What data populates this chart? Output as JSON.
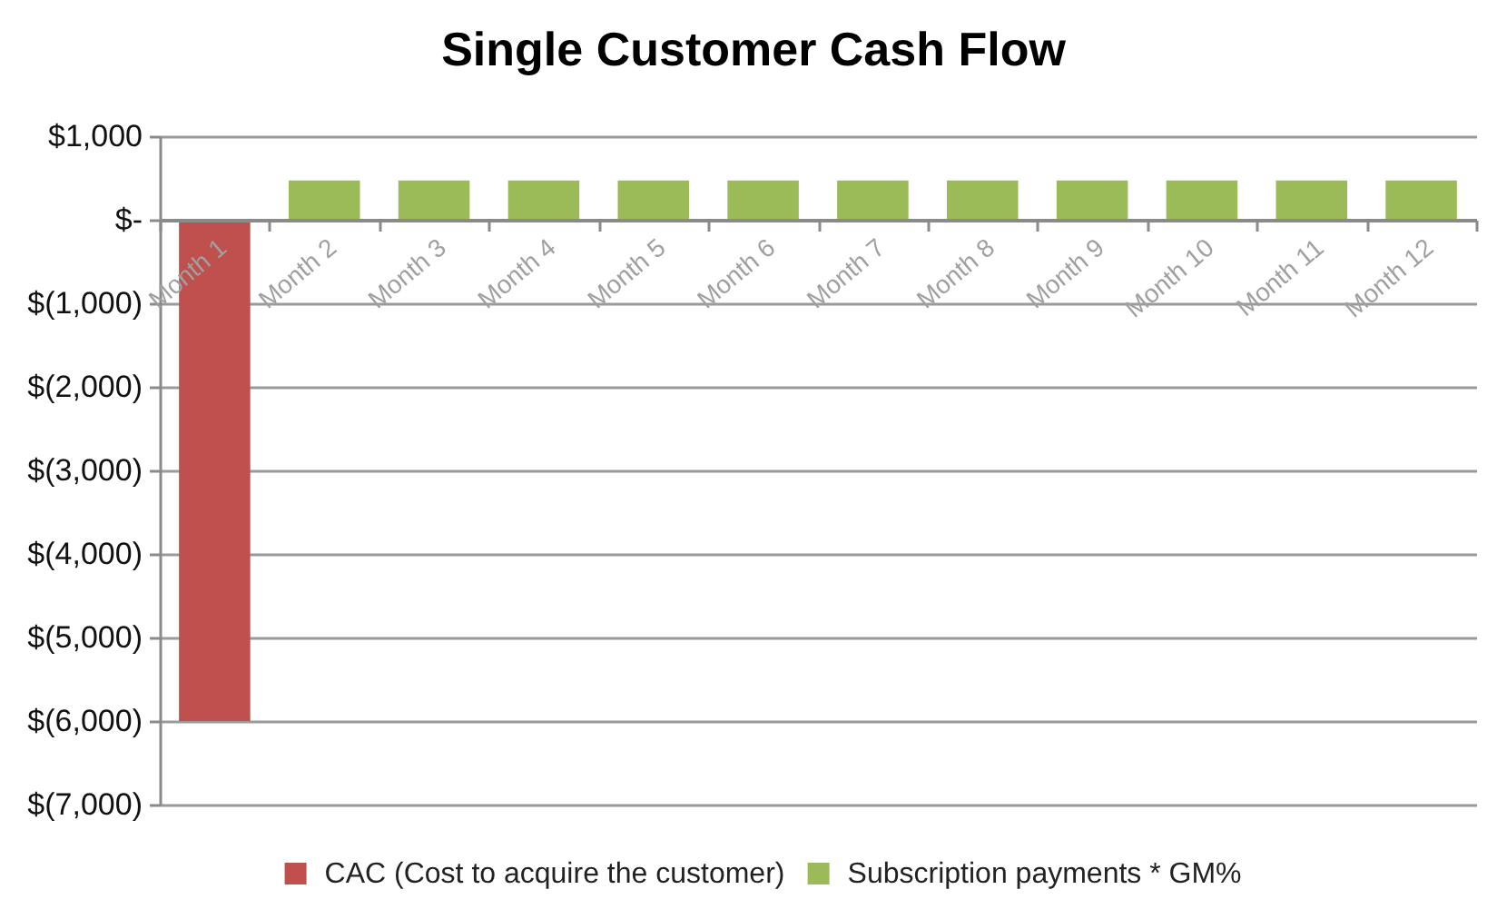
{
  "chart_data": {
    "type": "bar",
    "title": "Single Customer Cash Flow",
    "categories": [
      "Month 1",
      "Month 2",
      "Month 3",
      "Month 4",
      "Month 5",
      "Month 6",
      "Month 7",
      "Month 8",
      "Month 9",
      "Month 10",
      "Month 11",
      "Month 12"
    ],
    "series": [
      {
        "name": "CAC (Cost to acquire the customer)",
        "color": "#c0504d",
        "values": [
          -6000,
          null,
          null,
          null,
          null,
          null,
          null,
          null,
          null,
          null,
          null,
          null
        ]
      },
      {
        "name": "Subscription payments * GM%",
        "color": "#9bbb59",
        "values": [
          null,
          470,
          470,
          470,
          470,
          470,
          470,
          470,
          470,
          470,
          470,
          470
        ]
      }
    ],
    "stacked": true,
    "ylim": [
      -7000,
      1000
    ],
    "yticks": [
      {
        "value": 1000,
        "label": "$1,000"
      },
      {
        "value": 0,
        "label": "$-"
      },
      {
        "value": -1000,
        "label": "$(1,000)"
      },
      {
        "value": -2000,
        "label": "$(2,000)"
      },
      {
        "value": -3000,
        "label": "$(3,000)"
      },
      {
        "value": -4000,
        "label": "$(4,000)"
      },
      {
        "value": -5000,
        "label": "$(5,000)"
      },
      {
        "value": -6000,
        "label": "$(6,000)"
      },
      {
        "value": -7000,
        "label": "$(7,000)"
      }
    ],
    "grid": "y",
    "legend": "bottom"
  }
}
